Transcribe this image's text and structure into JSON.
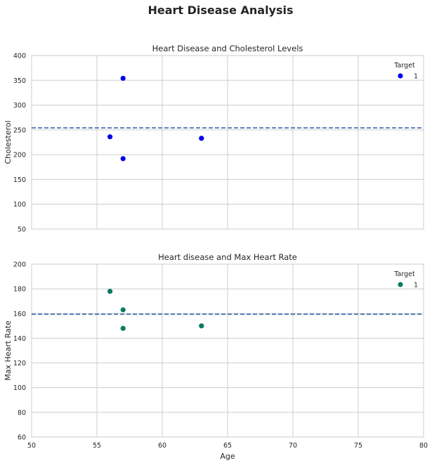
{
  "figure": {
    "title": "Heart Disease Analysis"
  },
  "chart_data": [
    {
      "type": "scatter",
      "title": "Heart Disease and Cholesterol Levels",
      "xlabel": "",
      "ylabel": "Cholesterol",
      "xlim": [
        50,
        80
      ],
      "ylim": [
        50,
        400
      ],
      "xticks": [
        50,
        55,
        60,
        65,
        70,
        75,
        80
      ],
      "yticks": [
        50,
        100,
        150,
        200,
        250,
        300,
        350,
        400
      ],
      "show_xticklabels": false,
      "grid": true,
      "reference_line": {
        "y": 254,
        "style": "dashed",
        "color": "#4c72b0"
      },
      "legend": {
        "title": "Target",
        "placement": "top-right"
      },
      "series": [
        {
          "name": "1",
          "color": "#0000ee",
          "points": [
            {
              "x": 57,
              "y": 354
            },
            {
              "x": 56,
              "y": 236
            },
            {
              "x": 63,
              "y": 233
            },
            {
              "x": 57,
              "y": 192
            }
          ]
        }
      ]
    },
    {
      "type": "scatter",
      "title": "Heart disease and Max Heart Rate",
      "xlabel": "Age",
      "ylabel": "Max Heart Rate",
      "xlim": [
        50,
        80
      ],
      "ylim": [
        60,
        200
      ],
      "xticks": [
        50,
        55,
        60,
        65,
        70,
        75,
        80
      ],
      "yticks": [
        60,
        80,
        100,
        120,
        140,
        160,
        180,
        200
      ],
      "show_xticklabels": true,
      "grid": true,
      "reference_line": {
        "y": 159.5,
        "style": "dashed",
        "color": "#4c72b0"
      },
      "legend": {
        "title": "Target",
        "placement": "top-right"
      },
      "series": [
        {
          "name": "1",
          "color": "#0b7a62",
          "points": [
            {
              "x": 56,
              "y": 178
            },
            {
              "x": 57,
              "y": 163
            },
            {
              "x": 57,
              "y": 148
            },
            {
              "x": 63,
              "y": 150
            }
          ]
        }
      ]
    }
  ]
}
